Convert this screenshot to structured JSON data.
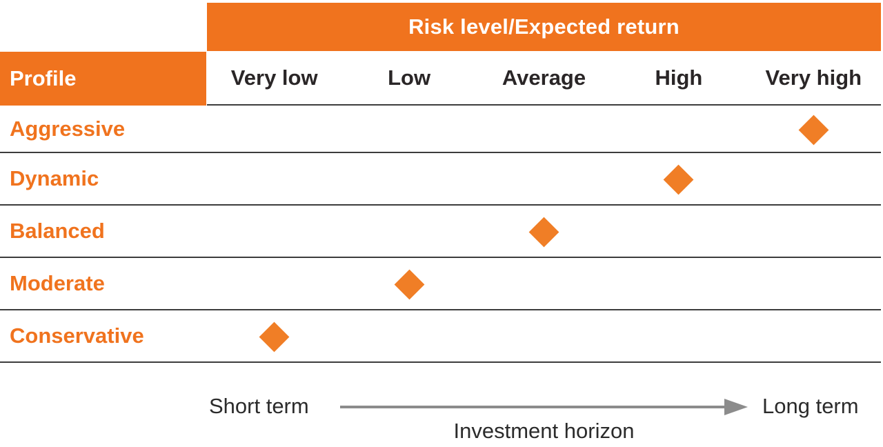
{
  "title_banner": "Risk level/Expected return",
  "profile_header": "Profile",
  "risk_levels": [
    "Very low",
    "Low",
    "Average",
    "High",
    "Very high"
  ],
  "profiles": [
    {
      "name": "Aggressive",
      "risk_level": "Very high",
      "level_index": 4
    },
    {
      "name": "Dynamic",
      "risk_level": "High",
      "level_index": 3
    },
    {
      "name": "Balanced",
      "risk_level": "Average",
      "level_index": 2
    },
    {
      "name": "Moderate",
      "risk_level": "Low",
      "level_index": 1
    },
    {
      "name": "Conservative",
      "risk_level": "Very low",
      "level_index": 0
    }
  ],
  "footer": {
    "left_label": "Short term",
    "right_label": "Long term",
    "axis_label": "Investment horizon"
  },
  "colors": {
    "orange": "#F0731E",
    "diamond_orange": "#F07E26",
    "header_text": "#2A2627",
    "line": "#3C3C3C",
    "arrow_gray": "#8C8C8C",
    "footer_text": "#2B2B2B"
  },
  "chart_data": {
    "type": "scatter",
    "title": "Risk level/Expected return",
    "x_categories": [
      "Very low",
      "Low",
      "Average",
      "High",
      "Very high"
    ],
    "y_categories": [
      "Aggressive",
      "Dynamic",
      "Balanced",
      "Moderate",
      "Conservative"
    ],
    "points": [
      {
        "profile": "Aggressive",
        "risk_level": "Very high"
      },
      {
        "profile": "Dynamic",
        "risk_level": "High"
      },
      {
        "profile": "Balanced",
        "risk_level": "Average"
      },
      {
        "profile": "Moderate",
        "risk_level": "Low"
      },
      {
        "profile": "Conservative",
        "risk_level": "Very low"
      }
    ],
    "marker": "diamond",
    "marker_color": "#F07E26",
    "secondary_axis": {
      "label": "Investment horizon",
      "left_end": "Short term",
      "right_end": "Long term"
    },
    "legend": "none",
    "grid": "horizontal-row-separators"
  }
}
